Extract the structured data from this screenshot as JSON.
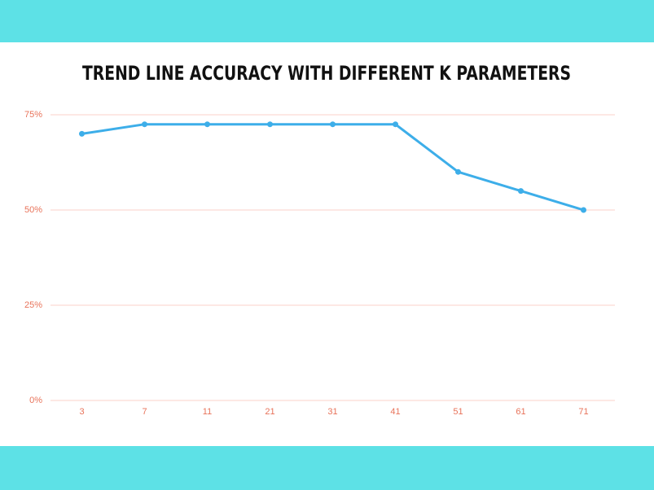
{
  "chart_data": {
    "type": "line",
    "title": "TREND LINE ACCURACY WITH DIFFERENT K PARAMETERS",
    "categories": [
      "3",
      "7",
      "11",
      "21",
      "31",
      "41",
      "51",
      "61",
      "71"
    ],
    "values": [
      70,
      72.5,
      72.5,
      72.5,
      72.5,
      72.5,
      60,
      55,
      50
    ],
    "color": "#3daee9",
    "ylim": [
      0,
      75
    ],
    "yticks": [
      {
        "value": 0,
        "label": "0%"
      },
      {
        "value": 25,
        "label": "25%"
      },
      {
        "value": 50,
        "label": "50%"
      },
      {
        "value": 75,
        "label": "75%"
      }
    ],
    "grid": true
  }
}
